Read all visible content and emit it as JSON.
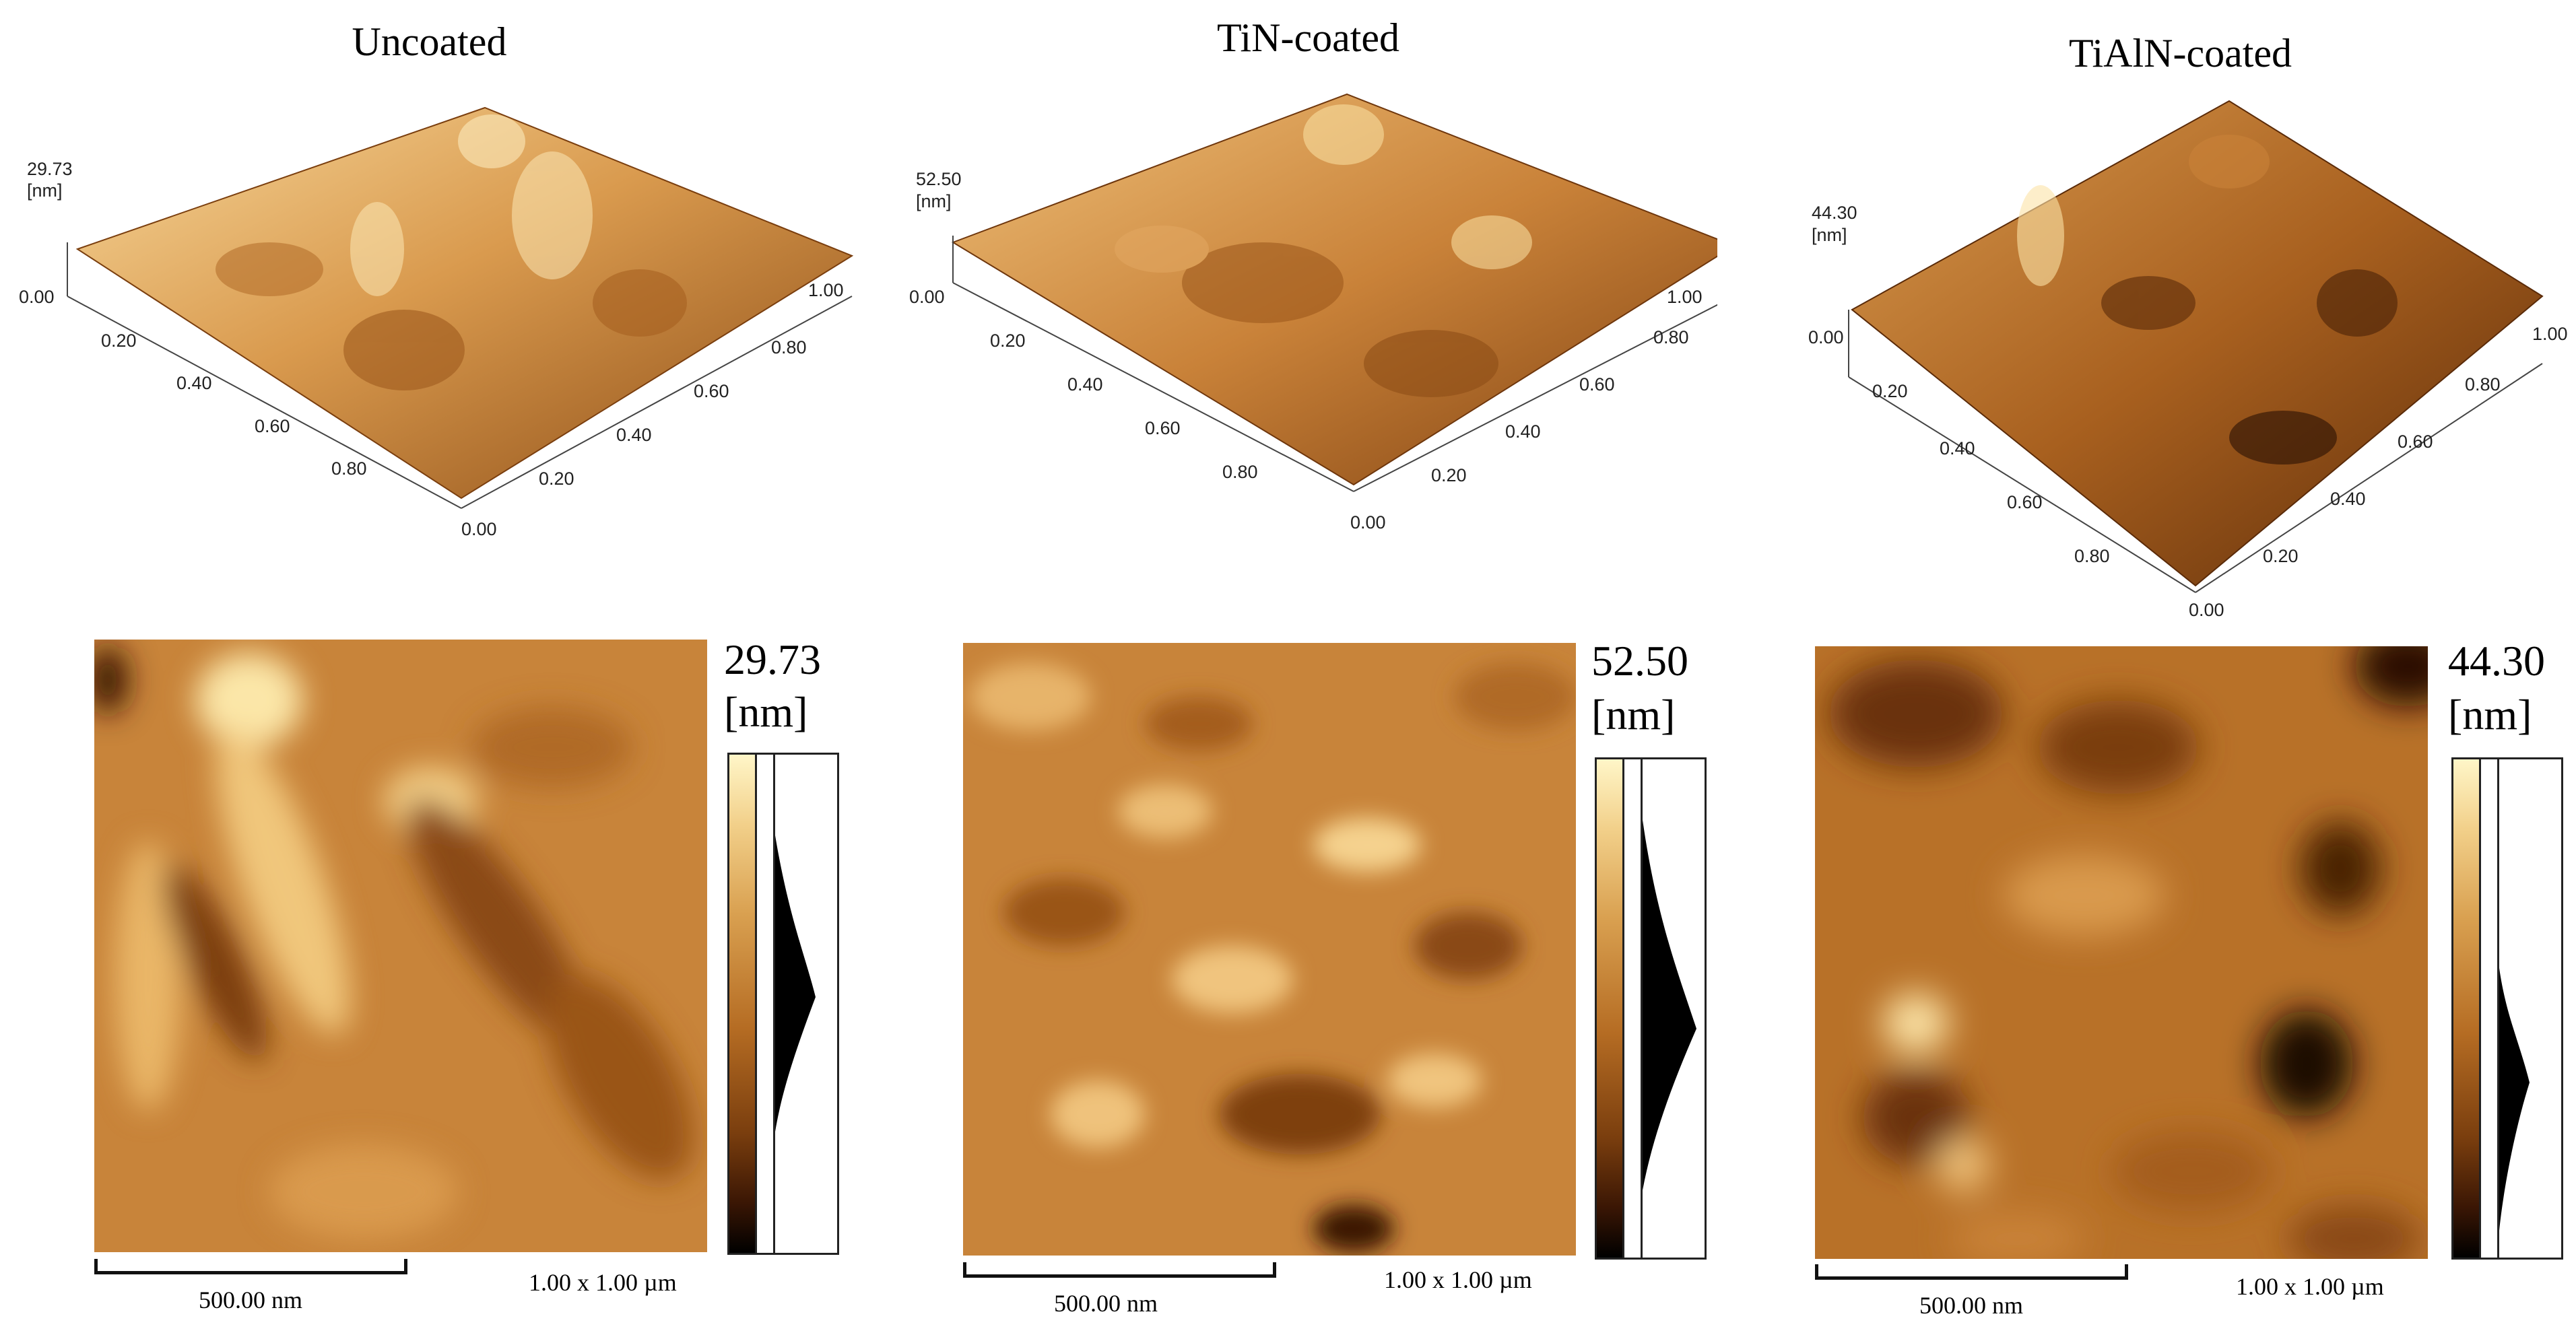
{
  "panels": [
    {
      "title": "Uncoated",
      "z_max": "29.73",
      "z_unit": "[nm]",
      "axis_x_ticks": [
        "0.20",
        "0.40",
        "0.60",
        "0.80"
      ],
      "axis_y_ticks": [
        "0.20",
        "0.40",
        "0.60",
        "0.80"
      ],
      "axis_zero_left": "0.00",
      "axis_zero_bottom": "0.00",
      "axis_end": "1.00",
      "scalebar_label": "500.00 nm",
      "scan_size": "1.00 x 1.00 µm"
    },
    {
      "title": "TiN-coated",
      "z_max": "52.50",
      "z_unit": "[nm]",
      "axis_x_ticks": [
        "0.20",
        "0.40",
        "0.60",
        "0.80"
      ],
      "axis_y_ticks": [
        "0.20",
        "0.40",
        "0.60",
        "0.80"
      ],
      "axis_zero_left": "0.00",
      "axis_zero_bottom": "0.00",
      "axis_end": "1.00",
      "scalebar_label": "500.00 nm",
      "scan_size": "1.00 x 1.00 µm"
    },
    {
      "title": "TiAlN-coated",
      "z_max": "44.30",
      "z_unit": "[nm]",
      "axis_x_ticks": [
        "0.20",
        "0.40",
        "0.60",
        "0.80"
      ],
      "axis_y_ticks": [
        "0.20",
        "0.40",
        "0.60",
        "0.80"
      ],
      "axis_zero_left": "0.00",
      "axis_zero_bottom": "0.00",
      "axis_end": "1.00",
      "scalebar_label": "500.00 nm",
      "scan_size": "1.00 x 1.00 µm"
    }
  ],
  "colors": {
    "afm_light": "#fbe6a8",
    "afm_mid": "#c8843a",
    "afm_dark": "#3a1604"
  }
}
